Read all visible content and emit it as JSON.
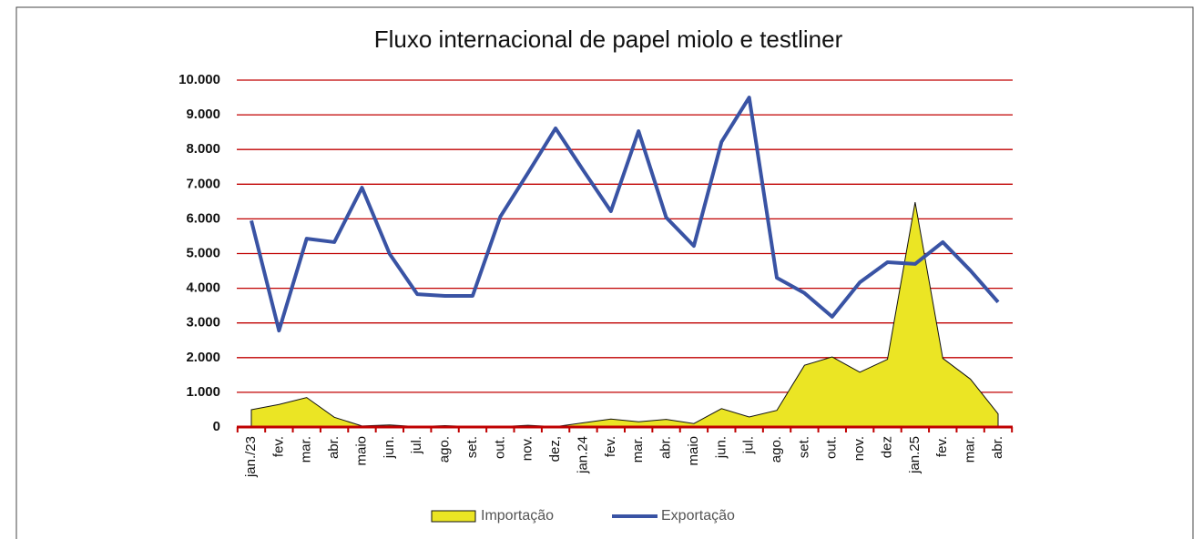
{
  "chart_data": {
    "type": "line",
    "title": "Fluxo internacional de papel miolo e testliner",
    "categories": [
      "jan./23",
      "fev.",
      "mar.",
      "abr.",
      "maio",
      "jun.",
      "jul.",
      "ago.",
      "set.",
      "out.",
      "nov.",
      "dez,",
      "jan.24",
      "fev.",
      "mar.",
      "abr.",
      "maio",
      "jun.",
      "jul.",
      "ago.",
      "set.",
      "out.",
      "nov.",
      "dez",
      "jan.25",
      "fev.",
      "mar.",
      "abr."
    ],
    "series": [
      {
        "name": "Importação",
        "color": "#ebe524",
        "kind": "area",
        "values": [
          500,
          650,
          850,
          280,
          30,
          60,
          10,
          40,
          10,
          10,
          50,
          10,
          120,
          230,
          150,
          220,
          100,
          530,
          290,
          480,
          1780,
          2020,
          1580,
          1950,
          6480,
          1980,
          1380,
          380
        ]
      },
      {
        "name": "Exportação",
        "color": "#3953a4",
        "kind": "line",
        "values": [
          5950,
          2780,
          5430,
          5330,
          6900,
          4990,
          3830,
          3780,
          3780,
          6060,
          7320,
          8610,
          7400,
          6220,
          8530,
          6040,
          5220,
          8220,
          9500,
          4300,
          3860,
          3180,
          4170,
          4750,
          4700,
          5330,
          4510,
          3600
        ]
      }
    ],
    "ylim": [
      0,
      10000
    ],
    "yticks": [
      0,
      {
        "value": 1000,
        "label": "1.000"
      },
      {
        "value": 2000,
        "label": "2.000"
      },
      {
        "value": 3000,
        "label": "3.000"
      },
      {
        "value": 4000,
        "label": "4.000"
      },
      {
        "value": 5000,
        "label": "5.000"
      },
      {
        "value": 6000,
        "label": "6.000"
      },
      {
        "value": 7000,
        "label": "7.000"
      },
      {
        "value": 8000,
        "label": "8.000"
      },
      {
        "value": 9000,
        "label": "9.000"
      },
      {
        "value": 10000,
        "label": "10.000"
      }
    ],
    "grid": true,
    "grid_color": "#c00000",
    "legend": "bottom"
  }
}
